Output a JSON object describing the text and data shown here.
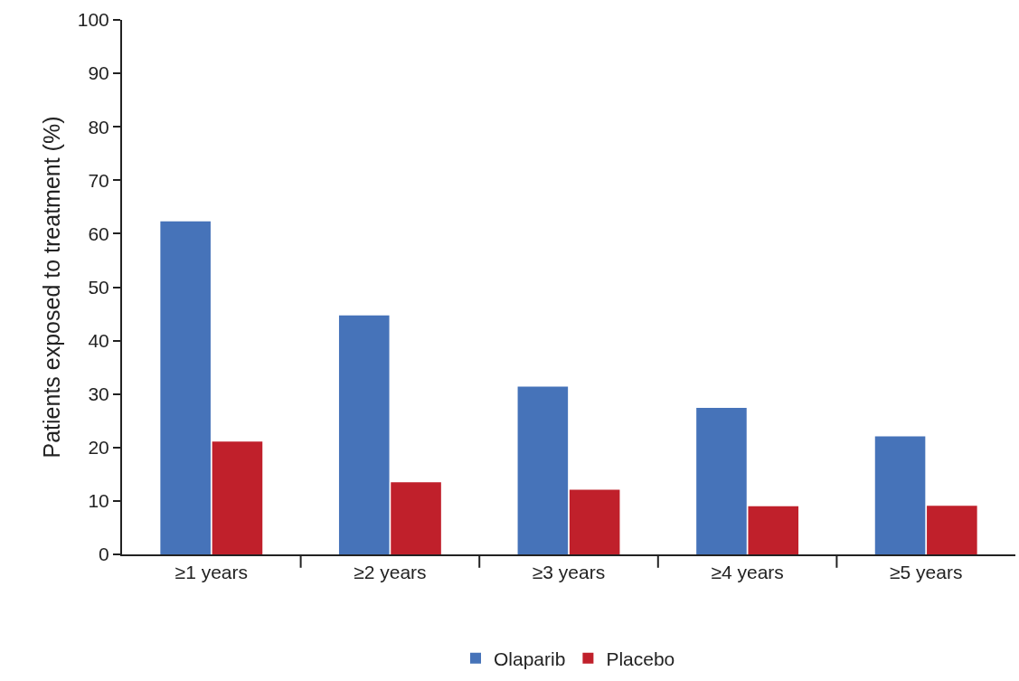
{
  "chart_data": {
    "type": "bar",
    "ylabel": "Patients exposed to treatment (%)",
    "categories": [
      "≥1 years",
      "≥2 years",
      "≥3 years",
      "≥4 years",
      "≥5 years"
    ],
    "series": [
      {
        "name": "Olaparib",
        "color": "#4673b9",
        "values": [
          62.3,
          44.7,
          31.4,
          27.4,
          22.1
        ]
      },
      {
        "name": "Placebo",
        "color": "#c0202b",
        "values": [
          21.1,
          13.5,
          12.1,
          9.0,
          9.1
        ]
      }
    ],
    "ylim": [
      0,
      100
    ],
    "yticks": [
      0,
      10,
      20,
      30,
      40,
      50,
      60,
      70,
      80,
      90,
      100
    ],
    "grid": false,
    "legend": "bottom"
  }
}
